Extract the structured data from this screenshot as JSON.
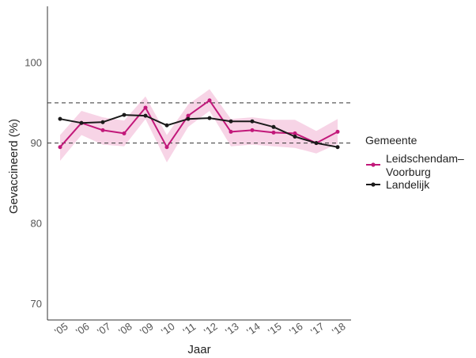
{
  "chart_data": {
    "type": "line",
    "xlabel": "Jaar",
    "ylabel": "Gevaccineerd (%)",
    "categories": [
      "'05",
      "'06",
      "'07",
      "'08",
      "'09",
      "'10",
      "'11",
      "'12",
      "'13",
      "'14",
      "'15",
      "'16",
      "'17",
      "'18"
    ],
    "ylim": [
      68,
      107
    ],
    "yticks": [
      70,
      80,
      90,
      100
    ],
    "reference_lines": [
      90,
      95
    ],
    "series": [
      {
        "name": "Leidschendam–Voorburg",
        "color": "#c2187a",
        "band_color": "#f4c6de",
        "values": [
          89.5,
          92.5,
          91.6,
          91.2,
          94.4,
          89.5,
          93.4,
          95.3,
          91.4,
          91.6,
          91.3,
          91.2,
          90.0,
          91.4
        ],
        "lower": [
          87.8,
          91.0,
          89.8,
          89.6,
          93.0,
          87.6,
          92.0,
          94.0,
          89.6,
          89.8,
          89.6,
          89.4,
          88.7,
          89.9
        ],
        "upper": [
          91.0,
          94.0,
          93.2,
          92.8,
          95.8,
          91.0,
          94.8,
          96.7,
          93.0,
          93.2,
          92.9,
          92.9,
          91.5,
          93.0
        ]
      },
      {
        "name": "Landelijk",
        "color": "#1a1a1a",
        "values": [
          93.0,
          92.5,
          92.6,
          93.5,
          93.4,
          92.2,
          93.0,
          93.1,
          92.7,
          92.7,
          92.0,
          90.8,
          90.0,
          89.5
        ]
      }
    ],
    "legend": {
      "title": "Gemeente",
      "position": "right",
      "entries": [
        "Leidschendam–\nVoorburg",
        "Landelijk"
      ]
    }
  }
}
